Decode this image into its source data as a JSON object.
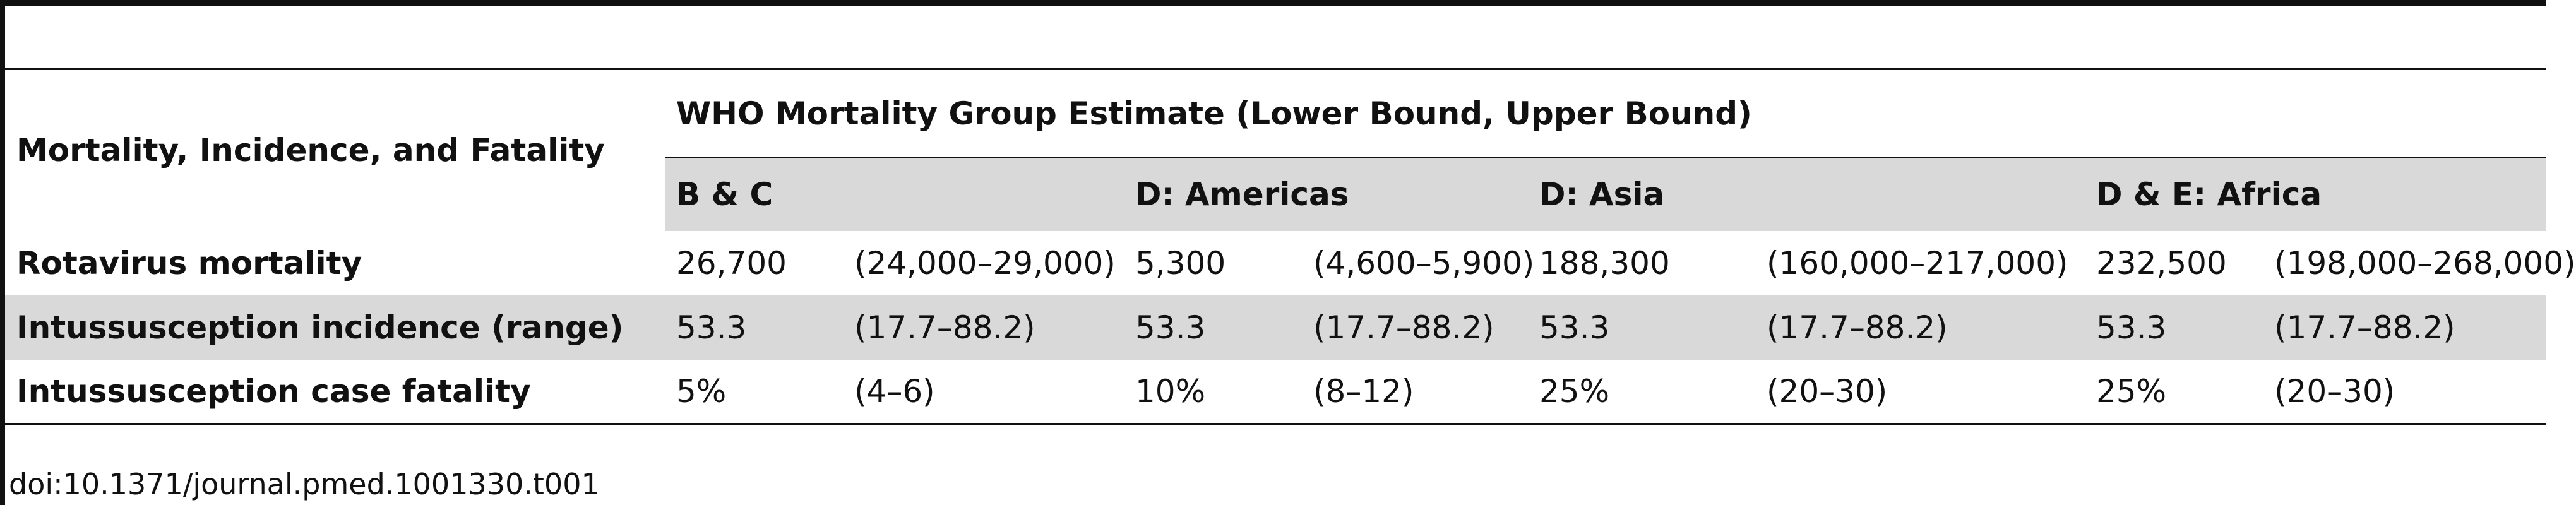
{
  "table": {
    "stub_header": "Mortality, Incidence, and Fatality",
    "group_header": "WHO Mortality Group Estimate (Lower Bound, Upper Bound)",
    "regions": [
      "B & C",
      "D: Americas",
      "D: Asia",
      "D & E: Africa"
    ],
    "rows": [
      {
        "label": "Rotavirus mortality",
        "cells": [
          "26,700",
          "(24,000–29,000)",
          "5,300",
          "(4,600–5,900)",
          "188,300",
          "(160,000–217,000)",
          "232,500",
          "(198,000–268,000)"
        ]
      },
      {
        "label": "Intussusception incidence (range)",
        "cells": [
          "53.3",
          "(17.7–88.2)",
          "53.3",
          "(17.7–88.2)",
          "53.3",
          "(17.7–88.2)",
          "53.3",
          "(17.7–88.2)"
        ]
      },
      {
        "label": "Intussusception case fatality",
        "cells": [
          "5%",
          "(4–6)",
          "10%",
          "(8–12)",
          "25%",
          "(20–30)",
          "25%",
          "(20–30)"
        ]
      }
    ]
  },
  "footnote": "doi:10.1371/journal.pmed.1001330.t001"
}
